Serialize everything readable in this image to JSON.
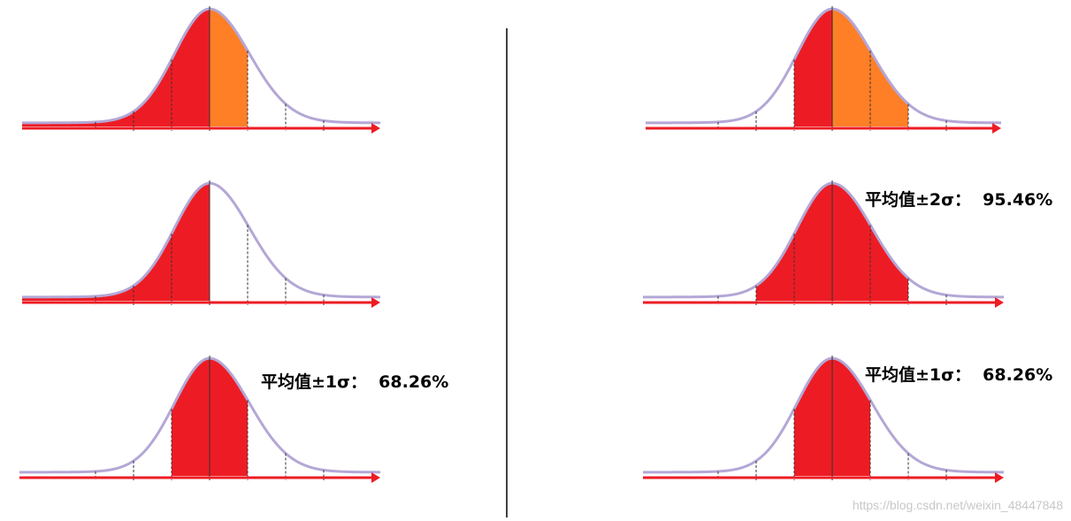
{
  "annotations": [
    "平均值±1σ：  68.26%",
    "平均值±2σ：  95.46%",
    "平均值±1σ：  68.26%"
  ],
  "watermark": "https://blog.csdn.net/weixin_48447848"
}
